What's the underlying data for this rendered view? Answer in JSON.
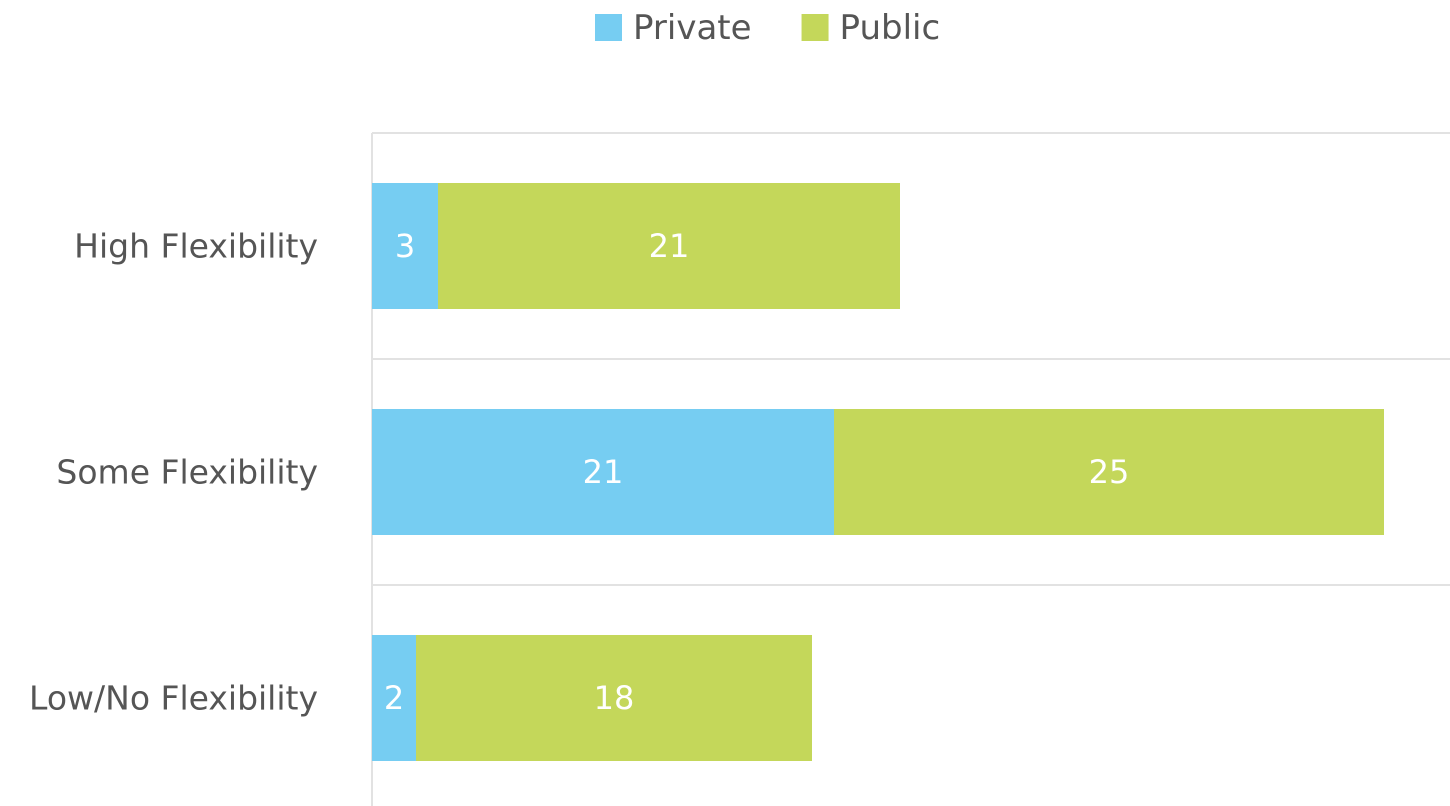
{
  "chart_data": {
    "type": "bar",
    "orientation": "horizontal",
    "stacked": true,
    "categories": [
      "High Flexibility",
      "Some Flexibility",
      "Low/No Flexibility"
    ],
    "series": [
      {
        "name": "Private",
        "color": "#76cdf2",
        "values": [
          3,
          21,
          2
        ]
      },
      {
        "name": "Public",
        "color": "#c4d75a",
        "values": [
          21,
          25,
          18
        ]
      }
    ],
    "xlim": [
      0,
      49
    ],
    "legend": "top"
  }
}
